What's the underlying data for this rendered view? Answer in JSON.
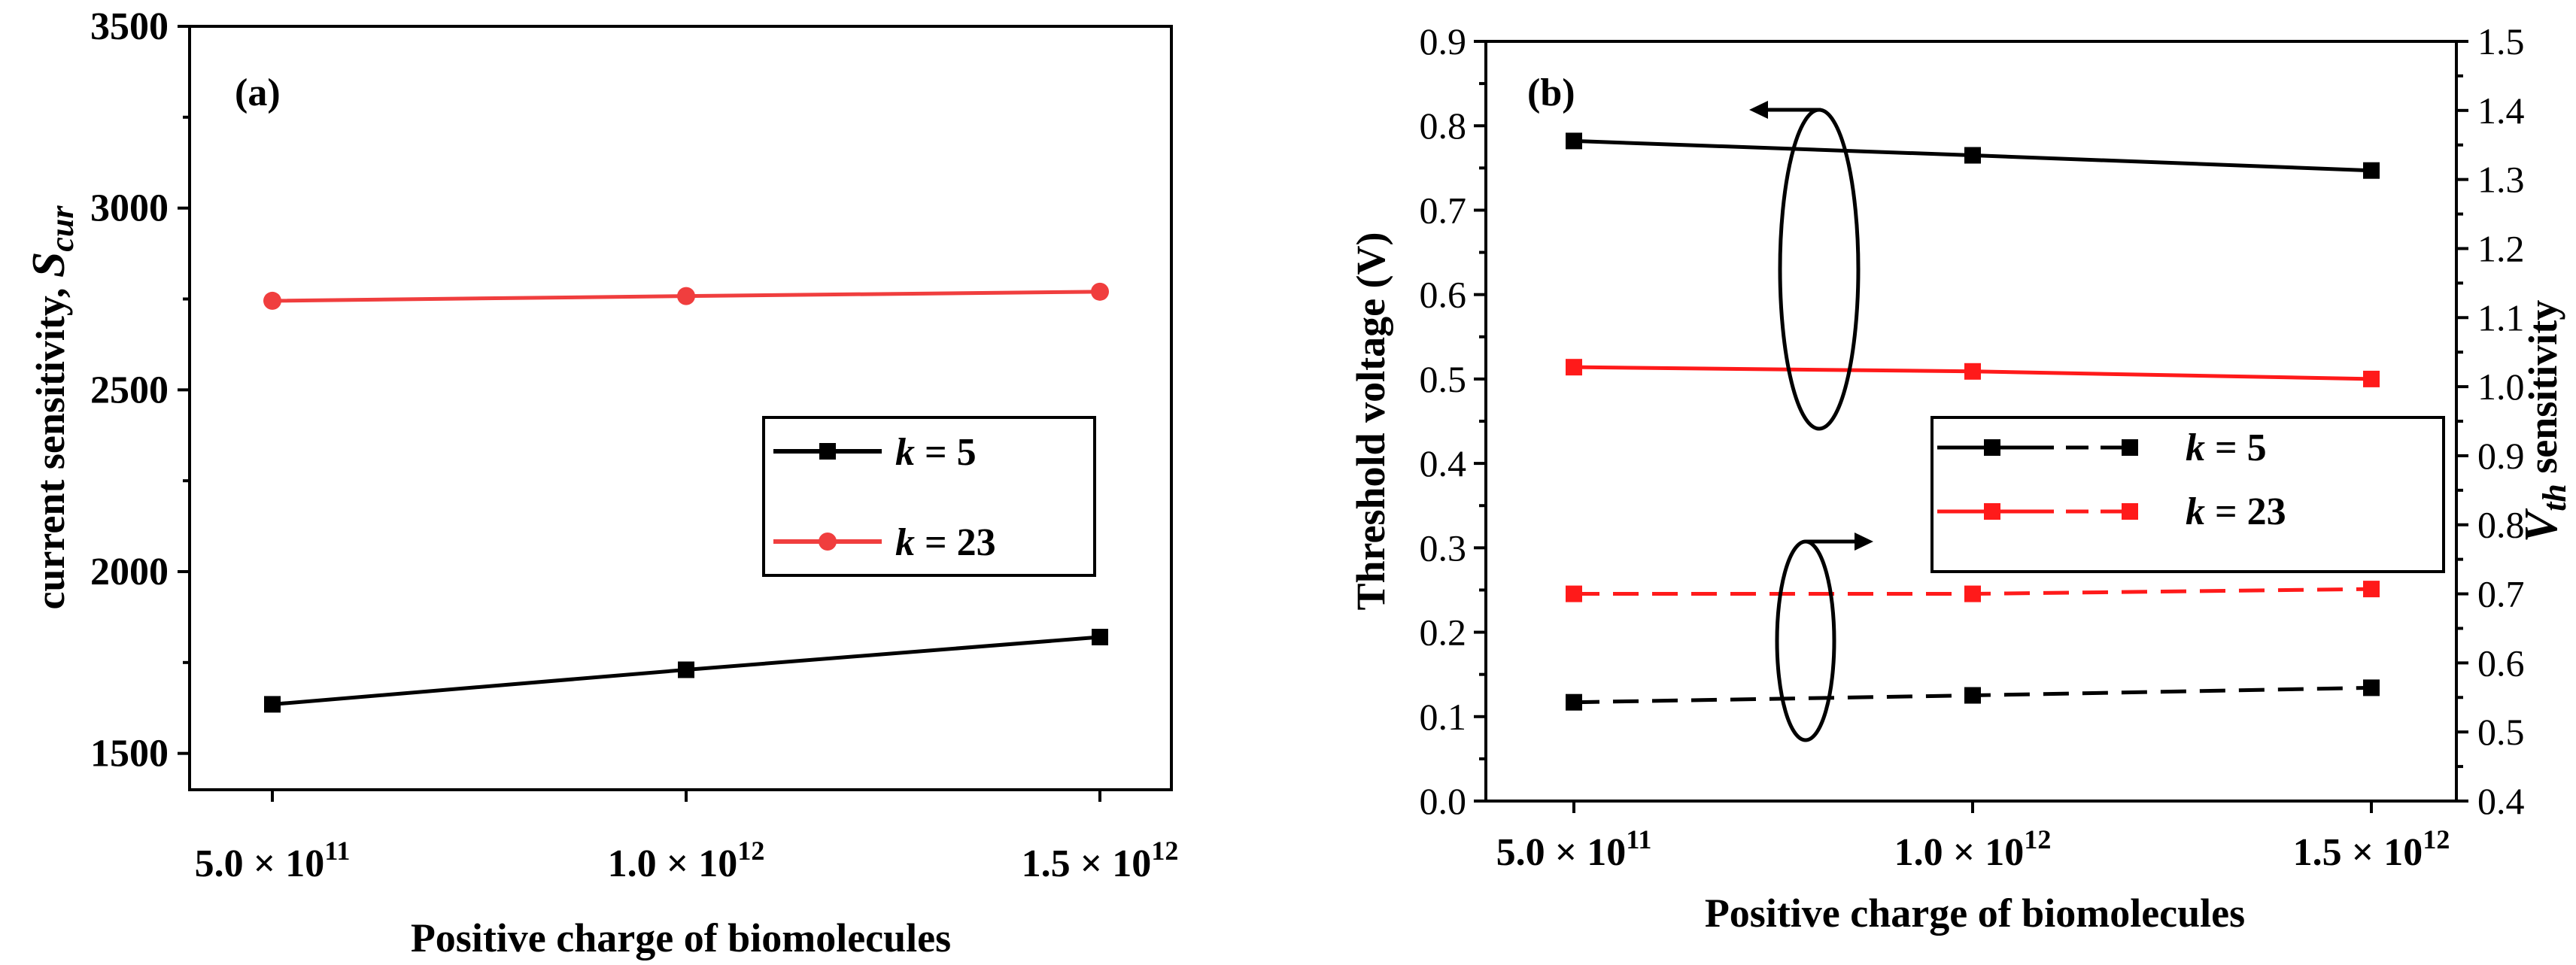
{
  "chart_data": [
    {
      "type": "line",
      "panel_label": "(a)",
      "xlabel": "Positive charge of biomolecules",
      "ylabel_prefix": "current sensitivity, ",
      "ylabel_var": "S",
      "ylabel_sub": "cur",
      "x": [
        500000000000.0,
        1000000000000.0,
        1500000000000.0
      ],
      "x_tick_labels": [
        {
          "mant": "5.0 × 10",
          "exp": "11"
        },
        {
          "mant": "1.0 × 10",
          "exp": "12"
        },
        {
          "mant": "1.5 × 10",
          "exp": "12"
        }
      ],
      "ylim": [
        1400,
        3500
      ],
      "y_ticks": [
        1500,
        2000,
        2500,
        3000,
        3500
      ],
      "series": [
        {
          "name_var": "k",
          "name_val": " = 5",
          "color": "#000000",
          "marker": "square",
          "dash": false,
          "values": [
            1635,
            1730,
            1820
          ]
        },
        {
          "name_var": "k",
          "name_val": " = 23",
          "color": "#f03e3e",
          "marker": "circle",
          "dash": false,
          "values": [
            2745,
            2758,
            2770
          ]
        }
      ],
      "legend": "center-right"
    },
    {
      "type": "line",
      "panel_label": "(b)",
      "xlabel": "Positive charge of biomolecules",
      "ylabel_left": "Threshold voltage (V)",
      "ylabel_right_var": "V",
      "ylabel_right_sub": "th",
      "ylabel_right_suffix": " sensitivity",
      "x": [
        500000000000.0,
        1000000000000.0,
        1500000000000.0
      ],
      "x_tick_labels": [
        {
          "mant": "5.0 × 10",
          "exp": "11"
        },
        {
          "mant": "1.0 × 10",
          "exp": "12"
        },
        {
          "mant": "1.5 × 10",
          "exp": "12"
        }
      ],
      "ylim_left": [
        0.0,
        0.9
      ],
      "y_ticks_left": [
        "0.0",
        "0.1",
        "0.2",
        "0.3",
        "0.4",
        "0.5",
        "0.6",
        "0.7",
        "0.8",
        "0.9"
      ],
      "ylim_right": [
        0.4,
        1.5
      ],
      "y_ticks_right": [
        "0.4",
        "0.5",
        "0.6",
        "0.7",
        "0.8",
        "0.9",
        "1.0",
        "1.1",
        "1.2",
        "1.3",
        "1.4",
        "1.5"
      ],
      "series": [
        {
          "name_var": "k",
          "name_val": " = 5",
          "axis": "left",
          "color": "#000000",
          "marker": "square",
          "dash": false,
          "values": [
            0.782,
            0.765,
            0.747
          ]
        },
        {
          "name_var": "k",
          "name_val": " = 23",
          "axis": "left",
          "color": "#ff1a1a",
          "marker": "square",
          "dash": false,
          "values": [
            0.514,
            0.509,
            0.5
          ]
        },
        {
          "name": "k = 5 sensitivity",
          "axis": "right",
          "color": "#000000",
          "marker": "square",
          "dash": true,
          "values": [
            0.543,
            0.553,
            0.564
          ]
        },
        {
          "name": "k = 23 sensitivity",
          "axis": "right",
          "color": "#ff1a1a",
          "marker": "square",
          "dash": true,
          "values": [
            0.7,
            0.7,
            0.707
          ]
        }
      ],
      "legend": "center-right",
      "annotations": [
        "left-arrow ellipse pointing to threshold voltage axis",
        "right-arrow ellipse pointing to sensitivity axis"
      ]
    }
  ]
}
